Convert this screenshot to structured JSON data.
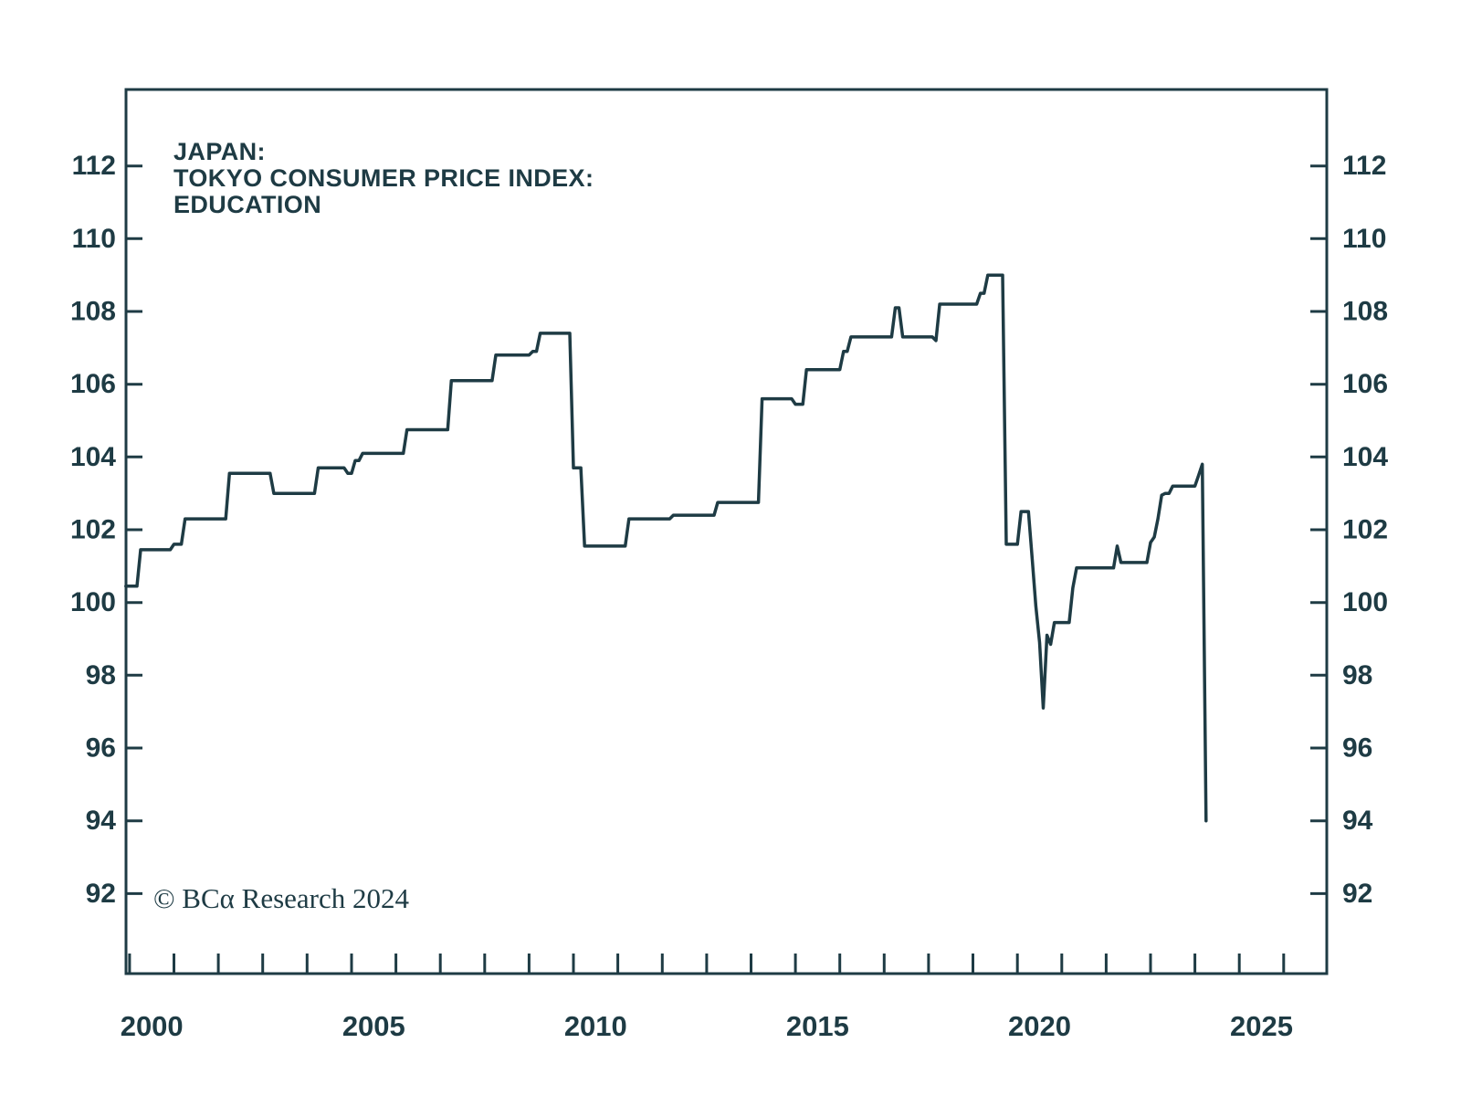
{
  "chart_data": {
    "type": "line",
    "style": "monthly-step-line",
    "title_lines": [
      "JAPAN:",
      "TOKYO CONSUMER PRICE INDEX:",
      "EDUCATION"
    ],
    "source_note": "© BCα Research 2024",
    "ink_color": "#1e3b44",
    "background_color": "#ffffff",
    "grid": "off",
    "legend": "none",
    "x_axis": {
      "range": [
        1999.92,
        2026.97
      ],
      "tick_years_start": 2000,
      "tick_years_end": 2026,
      "label_years": [
        2000,
        2005,
        2010,
        2015,
        2020,
        2025
      ],
      "labels": [
        "2000",
        "2005",
        "2010",
        "2015",
        "2020",
        "2025"
      ]
    },
    "y_axis": {
      "range": [
        89.8,
        114.1
      ],
      "ticks": [
        92,
        94,
        96,
        98,
        100,
        102,
        104,
        106,
        108,
        110,
        112
      ],
      "labels_both_sides": true
    },
    "series": [
      {
        "name": "Japan: Tokyo Consumer Price Index: Education",
        "color": "#1e3b44",
        "start": "1999-12",
        "end": "2024-04",
        "steps": [
          [
            "1999-12",
            100.45
          ],
          [
            "2000-04",
            101.45
          ],
          [
            "2001-01",
            101.6
          ],
          [
            "2001-04",
            102.3
          ],
          [
            "2002-04",
            103.55
          ],
          [
            "2003-04",
            103.0
          ],
          [
            "2004-04",
            103.7
          ],
          [
            "2004-12",
            103.55
          ],
          [
            "2005-02",
            103.9
          ],
          [
            "2005-04",
            104.1
          ],
          [
            "2006-04",
            104.75
          ],
          [
            "2007-04",
            106.1
          ],
          [
            "2008-04",
            106.8
          ],
          [
            "2009-02",
            106.9
          ],
          [
            "2009-04",
            107.4
          ],
          [
            "2010-01",
            103.7
          ],
          [
            "2010-04",
            101.55
          ],
          [
            "2011-04",
            102.3
          ],
          [
            "2012-04",
            102.4
          ],
          [
            "2013-04",
            102.75
          ],
          [
            "2014-04",
            105.6
          ],
          [
            "2015-01",
            105.45
          ],
          [
            "2015-04",
            106.4
          ],
          [
            "2016-02",
            106.9
          ],
          [
            "2016-04",
            107.3
          ],
          [
            "2017-04",
            108.1
          ],
          [
            "2017-06",
            107.3
          ],
          [
            "2018-03",
            107.2
          ],
          [
            "2018-04",
            108.2
          ],
          [
            "2019-03",
            108.5
          ],
          [
            "2019-05",
            109.0
          ],
          [
            "2019-10",
            101.6
          ],
          [
            "2020-02",
            102.5
          ],
          [
            "2020-05",
            101.2
          ],
          [
            "2020-06",
            99.9
          ],
          [
            "2020-07",
            98.9
          ],
          [
            "2020-08",
            97.1
          ],
          [
            "2020-09",
            99.1
          ],
          [
            "2020-10",
            98.85
          ],
          [
            "2020-11",
            99.45
          ],
          [
            "2021-04",
            100.4
          ],
          [
            "2021-05",
            100.95
          ],
          [
            "2022-04",
            101.55
          ],
          [
            "2022-05",
            101.1
          ],
          [
            "2023-01",
            101.65
          ],
          [
            "2023-02",
            101.8
          ],
          [
            "2023-03",
            102.3
          ],
          [
            "2023-04",
            102.95
          ],
          [
            "2023-05",
            103.0
          ],
          [
            "2023-07",
            103.2
          ],
          [
            "2024-02",
            103.5
          ],
          [
            "2024-03",
            103.8
          ],
          [
            "2024-04",
            94.0
          ]
        ]
      }
    ]
  }
}
